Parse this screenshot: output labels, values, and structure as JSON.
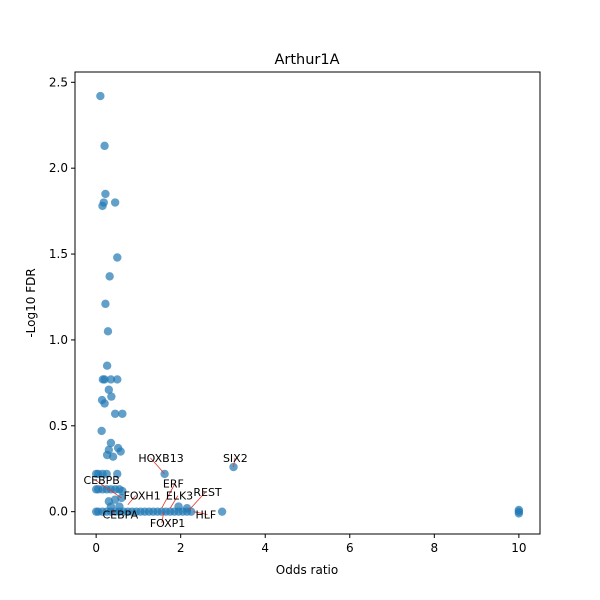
{
  "chart_data": {
    "type": "scatter",
    "title": "Arthur1A",
    "xlabel": "Odds ratio",
    "ylabel": "-Log10 FDR",
    "xlim": [
      -0.5,
      10.5
    ],
    "ylim": [
      -0.13,
      2.56
    ],
    "xticks": [
      0,
      2,
      4,
      6,
      8,
      10
    ],
    "yticks": [
      0.0,
      0.5,
      1.0,
      1.5,
      2.0,
      2.5
    ],
    "xtick_labels": [
      "0",
      "2",
      "4",
      "6",
      "8",
      "10"
    ],
    "ytick_labels": [
      "0.0",
      "0.5",
      "1.0",
      "1.5",
      "2.0",
      "2.5"
    ],
    "grid": false,
    "point_color": "#1f77b4",
    "annotation_line_color": "#e8342a",
    "points": [
      {
        "x": 0.1,
        "y": 2.42
      },
      {
        "x": 0.2,
        "y": 2.13
      },
      {
        "x": 0.22,
        "y": 1.85
      },
      {
        "x": 0.15,
        "y": 1.78
      },
      {
        "x": 0.18,
        "y": 1.8
      },
      {
        "x": 0.45,
        "y": 1.8
      },
      {
        "x": 0.5,
        "y": 1.48
      },
      {
        "x": 0.32,
        "y": 1.37
      },
      {
        "x": 0.22,
        "y": 1.21
      },
      {
        "x": 0.28,
        "y": 1.05
      },
      {
        "x": 0.26,
        "y": 0.85
      },
      {
        "x": 0.16,
        "y": 0.77
      },
      {
        "x": 0.2,
        "y": 0.77
      },
      {
        "x": 0.35,
        "y": 0.77
      },
      {
        "x": 0.5,
        "y": 0.77
      },
      {
        "x": 0.3,
        "y": 0.71
      },
      {
        "x": 0.36,
        "y": 0.67
      },
      {
        "x": 0.14,
        "y": 0.65
      },
      {
        "x": 0.2,
        "y": 0.63
      },
      {
        "x": 0.45,
        "y": 0.57
      },
      {
        "x": 0.62,
        "y": 0.57
      },
      {
        "x": 0.13,
        "y": 0.47
      },
      {
        "x": 0.35,
        "y": 0.4
      },
      {
        "x": 0.52,
        "y": 0.37
      },
      {
        "x": 0.3,
        "y": 0.36
      },
      {
        "x": 0.58,
        "y": 0.35
      },
      {
        "x": 0.26,
        "y": 0.33
      },
      {
        "x": 0.4,
        "y": 0.32
      },
      {
        "x": 1.62,
        "y": 0.22,
        "label": "HOXB13"
      },
      {
        "x": 3.25,
        "y": 0.26,
        "label": "SIX2"
      },
      {
        "x": 0.0,
        "y": 0.22
      },
      {
        "x": 0.05,
        "y": 0.22
      },
      {
        "x": 0.15,
        "y": 0.22
      },
      {
        "x": 0.25,
        "y": 0.22
      },
      {
        "x": 0.5,
        "y": 0.22
      },
      {
        "x": 0.0,
        "y": 0.13
      },
      {
        "x": 0.05,
        "y": 0.13
      },
      {
        "x": 0.15,
        "y": 0.13
      },
      {
        "x": 0.25,
        "y": 0.13
      },
      {
        "x": 0.35,
        "y": 0.13
      },
      {
        "x": 0.45,
        "y": 0.13
      },
      {
        "x": 0.55,
        "y": 0.13
      },
      {
        "x": 0.62,
        "y": 0.12
      },
      {
        "x": 0.3,
        "y": 0.06
      },
      {
        "x": 0.45,
        "y": 0.07
      },
      {
        "x": 0.6,
        "y": 0.08
      },
      {
        "x": 0.35,
        "y": 0.03
      },
      {
        "x": 0.55,
        "y": 0.03
      },
      {
        "x": 0.0,
        "y": 0.0
      },
      {
        "x": 0.05,
        "y": 0.0
      },
      {
        "x": 0.15,
        "y": 0.0
      },
      {
        "x": 0.25,
        "y": 0.0
      },
      {
        "x": 0.35,
        "y": 0.0
      },
      {
        "x": 0.45,
        "y": 0.0
      },
      {
        "x": 0.55,
        "y": 0.0
      },
      {
        "x": 0.65,
        "y": 0.0
      },
      {
        "x": 0.75,
        "y": 0.0
      },
      {
        "x": 0.85,
        "y": 0.0
      },
      {
        "x": 0.95,
        "y": 0.0
      },
      {
        "x": 1.05,
        "y": 0.0
      },
      {
        "x": 1.15,
        "y": 0.0
      },
      {
        "x": 1.25,
        "y": 0.0
      },
      {
        "x": 1.35,
        "y": 0.0
      },
      {
        "x": 1.45,
        "y": 0.0
      },
      {
        "x": 1.55,
        "y": 0.0
      },
      {
        "x": 1.65,
        "y": 0.0
      },
      {
        "x": 1.75,
        "y": 0.0
      },
      {
        "x": 1.85,
        "y": 0.0
      },
      {
        "x": 1.95,
        "y": 0.0
      },
      {
        "x": 2.05,
        "y": 0.0
      },
      {
        "x": 2.15,
        "y": 0.0
      },
      {
        "x": 2.25,
        "y": 0.0
      },
      {
        "x": 2.98,
        "y": 0.0
      },
      {
        "x": 1.95,
        "y": 0.03
      },
      {
        "x": 2.15,
        "y": 0.02
      },
      {
        "x": 10.0,
        "y": 0.0
      },
      {
        "x": 10.0,
        "y": 0.01
      },
      {
        "x": 10.0,
        "y": -0.01
      }
    ],
    "annotations": [
      {
        "text": "HOXB13",
        "point": [
          1.62,
          0.22
        ],
        "text_pos": [
          1.0,
          0.29
        ]
      },
      {
        "text": "SIX2",
        "point": [
          3.25,
          0.26
        ],
        "text_pos": [
          3.0,
          0.29
        ]
      },
      {
        "text": "CEBPB",
        "point": [
          0.6,
          0.08
        ],
        "text_pos": [
          -0.3,
          0.16
        ]
      },
      {
        "text": "ERF",
        "point": [
          1.55,
          0.02
        ],
        "text_pos": [
          1.58,
          0.14
        ]
      },
      {
        "text": "FOXH1",
        "point": [
          0.75,
          0.04
        ],
        "text_pos": [
          0.65,
          0.07
        ]
      },
      {
        "text": "ELK3",
        "point": [
          1.75,
          0.02
        ],
        "text_pos": [
          1.65,
          0.07
        ]
      },
      {
        "text": "REST",
        "point": [
          2.2,
          0.01
        ],
        "text_pos": [
          2.3,
          0.09
        ]
      },
      {
        "text": "CEBPA",
        "point": [
          0.4,
          0.01
        ],
        "text_pos": [
          0.15,
          -0.04
        ]
      },
      {
        "text": "HLF",
        "point": [
          2.3,
          0.0
        ],
        "text_pos": [
          2.35,
          -0.04
        ]
      },
      {
        "text": "FOXP1",
        "point": [
          1.6,
          0.0
        ],
        "text_pos": [
          1.27,
          -0.09
        ]
      }
    ]
  }
}
